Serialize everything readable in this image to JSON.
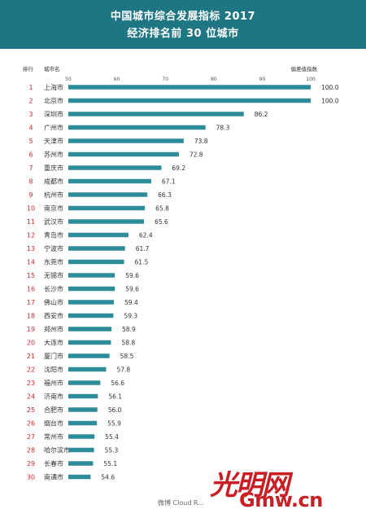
{
  "header": {
    "title_line1": "中国城市综合发展指标 2017",
    "title_line2": "经济排名前 30 位城市"
  },
  "columns": {
    "rank": "排行",
    "city": "城市名",
    "value": "偏差值指数"
  },
  "colors": {
    "header_bg": "#1f7683",
    "bar": "#2e8b99",
    "rank": "#d9262c"
  },
  "chart_data": {
    "type": "bar",
    "orientation": "horizontal",
    "title": "中国城市综合发展指标 2017 经济排名前 30 位城市",
    "xlim": [
      50,
      100
    ],
    "ticks": [
      50,
      60,
      70,
      80,
      90,
      100
    ],
    "xlabel": "偏差值指数",
    "ylabel": "城市名",
    "rows": [
      {
        "rank": "1",
        "city": "上海市",
        "value": "100.0"
      },
      {
        "rank": "2",
        "city": "北京市",
        "value": "100.0"
      },
      {
        "rank": "3",
        "city": "深圳市",
        "value": "86.2"
      },
      {
        "rank": "4",
        "city": "广州市",
        "value": "78.3"
      },
      {
        "rank": "5",
        "city": "天津市",
        "value": "73.8"
      },
      {
        "rank": "6",
        "city": "苏州市",
        "value": "72.8"
      },
      {
        "rank": "7",
        "city": "重庆市",
        "value": "69.2"
      },
      {
        "rank": "8",
        "city": "成都市",
        "value": "67.1"
      },
      {
        "rank": "9",
        "city": "杭州市",
        "value": "66.3"
      },
      {
        "rank": "10",
        "city": "南京市",
        "value": "65.8"
      },
      {
        "rank": "11",
        "city": "武汉市",
        "value": "65.6"
      },
      {
        "rank": "12",
        "city": "青岛市",
        "value": "62.4"
      },
      {
        "rank": "13",
        "city": "宁波市",
        "value": "61.7"
      },
      {
        "rank": "14",
        "city": "东莞市",
        "value": "61.5"
      },
      {
        "rank": "15",
        "city": "无锡市",
        "value": "59.6"
      },
      {
        "rank": "16",
        "city": "长沙市",
        "value": "59.6"
      },
      {
        "rank": "17",
        "city": "佛山市",
        "value": "59.4"
      },
      {
        "rank": "18",
        "city": "西安市",
        "value": "59.3"
      },
      {
        "rank": "19",
        "city": "郑州市",
        "value": "58.9"
      },
      {
        "rank": "20",
        "city": "大连市",
        "value": "58.8"
      },
      {
        "rank": "21",
        "city": "厦门市",
        "value": "58.5"
      },
      {
        "rank": "22",
        "city": "沈阳市",
        "value": "57.8"
      },
      {
        "rank": "23",
        "city": "福州市",
        "value": "56.6"
      },
      {
        "rank": "24",
        "city": "济南市",
        "value": "56.1"
      },
      {
        "rank": "25",
        "city": "合肥市",
        "value": "56.0"
      },
      {
        "rank": "26",
        "city": "烟台市",
        "value": "55.9"
      },
      {
        "rank": "27",
        "city": "常州市",
        "value": "55.4"
      },
      {
        "rank": "28",
        "city": "哈尔滨市",
        "value": "55.3"
      },
      {
        "rank": "29",
        "city": "长春市",
        "value": "55.1"
      },
      {
        "rank": "30",
        "city": "南通市",
        "value": "54.6"
      }
    ]
  },
  "watermark": {
    "logo_text": "光明网",
    "url_text": "Gmw.cn",
    "weibo_text": "微博 Cloud R..."
  }
}
